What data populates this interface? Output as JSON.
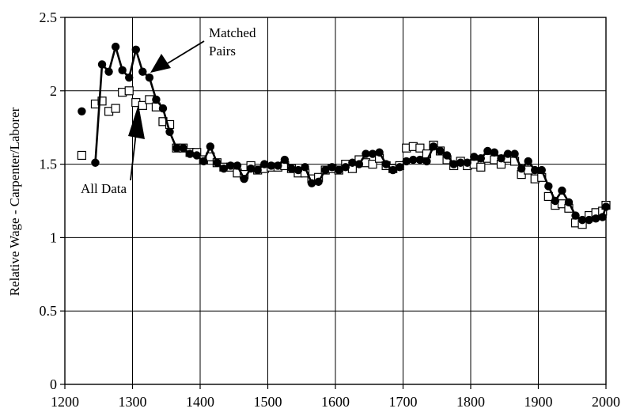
{
  "chart_data": {
    "type": "line",
    "title": "",
    "xlabel": "",
    "ylabel": "Relative Wage - Carpenter/Laborer",
    "xlim": [
      1200,
      2000
    ],
    "ylim": [
      0,
      2.5
    ],
    "xticks": [
      1200,
      1300,
      1400,
      1500,
      1600,
      1700,
      1800,
      1900,
      2000
    ],
    "yticks": [
      0,
      0.5,
      1,
      1.5,
      2,
      2.5
    ],
    "xtick_labels": [
      "1200",
      "1300",
      "1400",
      "1500",
      "1600",
      "1700",
      "1800",
      "1900",
      "2000"
    ],
    "ytick_labels": [
      "0",
      "0.5",
      "1",
      "1.5",
      "2",
      "2.5"
    ],
    "grid": true,
    "legend": "none",
    "series": [
      {
        "name": "Matched Pairs",
        "marker": "filled-circle",
        "color": "#000000",
        "x": [
          1245,
          1255,
          1265,
          1275,
          1285,
          1295,
          1305,
          1315,
          1325,
          1335,
          1345,
          1355,
          1365,
          1375,
          1385,
          1395,
          1405,
          1415,
          1425,
          1435,
          1445,
          1455,
          1465,
          1475,
          1485,
          1495,
          1505,
          1515,
          1525,
          1535,
          1545,
          1555,
          1565,
          1575,
          1585,
          1595,
          1605,
          1615,
          1625,
          1635,
          1645,
          1655,
          1665,
          1675,
          1685,
          1695,
          1705,
          1715,
          1725,
          1735,
          1745,
          1755,
          1765,
          1775,
          1785,
          1795,
          1805,
          1815,
          1825,
          1835,
          1845,
          1855,
          1865,
          1875,
          1885,
          1895,
          1905,
          1915,
          1925,
          1935,
          1945,
          1955,
          1965,
          1975,
          1985,
          1995,
          2000
        ],
        "y": [
          1.51,
          2.18,
          2.13,
          2.3,
          2.14,
          2.09,
          2.28,
          2.13,
          2.09,
          1.94,
          1.88,
          1.72,
          1.61,
          1.61,
          1.57,
          1.56,
          1.52,
          1.62,
          1.51,
          1.47,
          1.49,
          1.49,
          1.4,
          1.47,
          1.46,
          1.5,
          1.49,
          1.49,
          1.53,
          1.47,
          1.46,
          1.48,
          1.37,
          1.38,
          1.46,
          1.48,
          1.46,
          1.48,
          1.51,
          1.5,
          1.57,
          1.57,
          1.58,
          1.5,
          1.46,
          1.48,
          1.52,
          1.53,
          1.53,
          1.52,
          1.62,
          1.59,
          1.56,
          1.5,
          1.51,
          1.51,
          1.55,
          1.54,
          1.59,
          1.58,
          1.54,
          1.57,
          1.57,
          1.47,
          1.52,
          1.46,
          1.46,
          1.35,
          1.25,
          1.32,
          1.24,
          1.15,
          1.12,
          1.12,
          1.13,
          1.14,
          1.21
        ]
      },
      {
        "name": "All Data",
        "marker": "open-square",
        "color": "#000000",
        "x": [
          1225,
          1245,
          1255,
          1265,
          1275,
          1285,
          1295,
          1305,
          1315,
          1325,
          1335,
          1345,
          1355,
          1365,
          1375,
          1385,
          1395,
          1405,
          1415,
          1425,
          1435,
          1445,
          1455,
          1465,
          1475,
          1485,
          1495,
          1505,
          1515,
          1525,
          1535,
          1545,
          1555,
          1565,
          1575,
          1585,
          1595,
          1605,
          1615,
          1625,
          1635,
          1645,
          1655,
          1665,
          1675,
          1685,
          1695,
          1705,
          1715,
          1725,
          1735,
          1745,
          1755,
          1765,
          1775,
          1785,
          1795,
          1805,
          1815,
          1825,
          1835,
          1845,
          1855,
          1865,
          1875,
          1885,
          1895,
          1905,
          1915,
          1925,
          1935,
          1945,
          1955,
          1965,
          1975,
          1985,
          1995,
          2000
        ],
        "y": [
          1.56,
          1.91,
          1.93,
          1.86,
          1.88,
          1.99,
          2.0,
          1.92,
          1.9,
          1.94,
          1.89,
          1.79,
          1.77,
          1.61,
          1.61,
          1.58,
          1.58,
          1.53,
          1.55,
          1.51,
          1.48,
          1.48,
          1.44,
          1.43,
          1.49,
          1.46,
          1.47,
          1.48,
          1.48,
          1.49,
          1.47,
          1.44,
          1.44,
          1.4,
          1.41,
          1.46,
          1.47,
          1.46,
          1.5,
          1.47,
          1.53,
          1.51,
          1.5,
          1.54,
          1.49,
          1.47,
          1.49,
          1.61,
          1.62,
          1.61,
          1.57,
          1.63,
          1.59,
          1.53,
          1.49,
          1.52,
          1.49,
          1.5,
          1.48,
          1.54,
          1.53,
          1.5,
          1.54,
          1.52,
          1.43,
          1.46,
          1.4,
          1.41,
          1.28,
          1.22,
          1.23,
          1.2,
          1.1,
          1.09,
          1.15,
          1.17,
          1.18,
          1.22
        ]
      }
    ],
    "annotations": [
      {
        "text_lines": [
          "Matched",
          "Pairs"
        ],
        "target_x": 1312,
        "target_y": 2.12
      },
      {
        "text_lines": [
          "All Data"
        ],
        "target_x": 1305,
        "target_y": 1.93
      },
      {
        "isolated_point": {
          "series": "Matched Pairs",
          "x": 1225,
          "y": 1.86
        }
      }
    ]
  }
}
